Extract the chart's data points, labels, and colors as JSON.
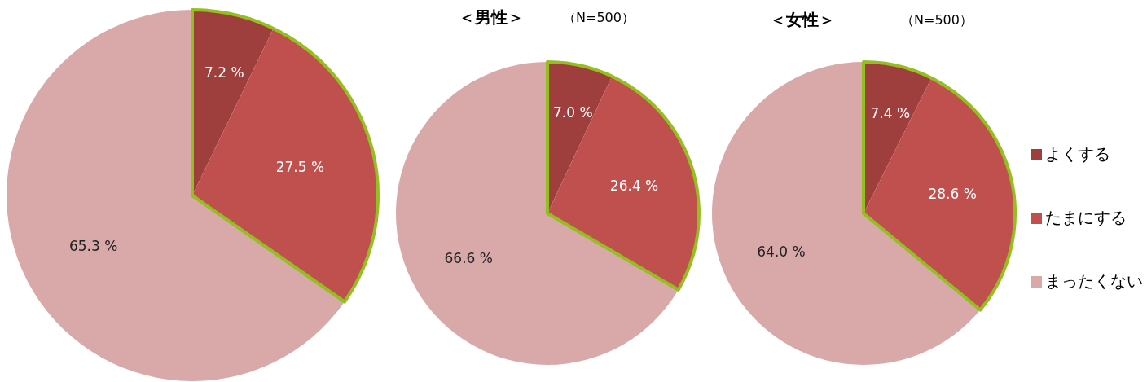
{
  "chart_data": [
    {
      "type": "pie",
      "categories": [
        null,
        null,
        null
      ],
      "values": [
        7.2,
        27.5,
        65.3
      ],
      "colors": [
        "#9e3f3d",
        "#c0504d",
        "#d9a9a9"
      ],
      "value_labels": [
        "7.2 %",
        "27.5 %",
        "65.3 %"
      ]
    },
    {
      "type": "pie",
      "title": "＜男性＞",
      "subtitle": "（N=500）",
      "categories": [
        null,
        null,
        null
      ],
      "values": [
        7.0,
        26.4,
        66.6
      ],
      "colors": [
        "#9e3f3d",
        "#c0504d",
        "#d9a9a9"
      ],
      "value_labels": [
        "7.0 %",
        "26.4 %",
        "66.6 %"
      ]
    },
    {
      "type": "pie",
      "title": "＜女性＞",
      "subtitle": "（N=500）",
      "categories": [
        "よくする",
        "たまにする",
        "まったくない"
      ],
      "values": [
        7.4,
        28.6,
        64.0
      ],
      "colors": [
        "#9e3f3d",
        "#c0504d",
        "#d9a9a9"
      ],
      "value_labels": [
        "7.4 %",
        "28.6 %",
        "64.0 %"
      ],
      "legend": "right"
    }
  ]
}
